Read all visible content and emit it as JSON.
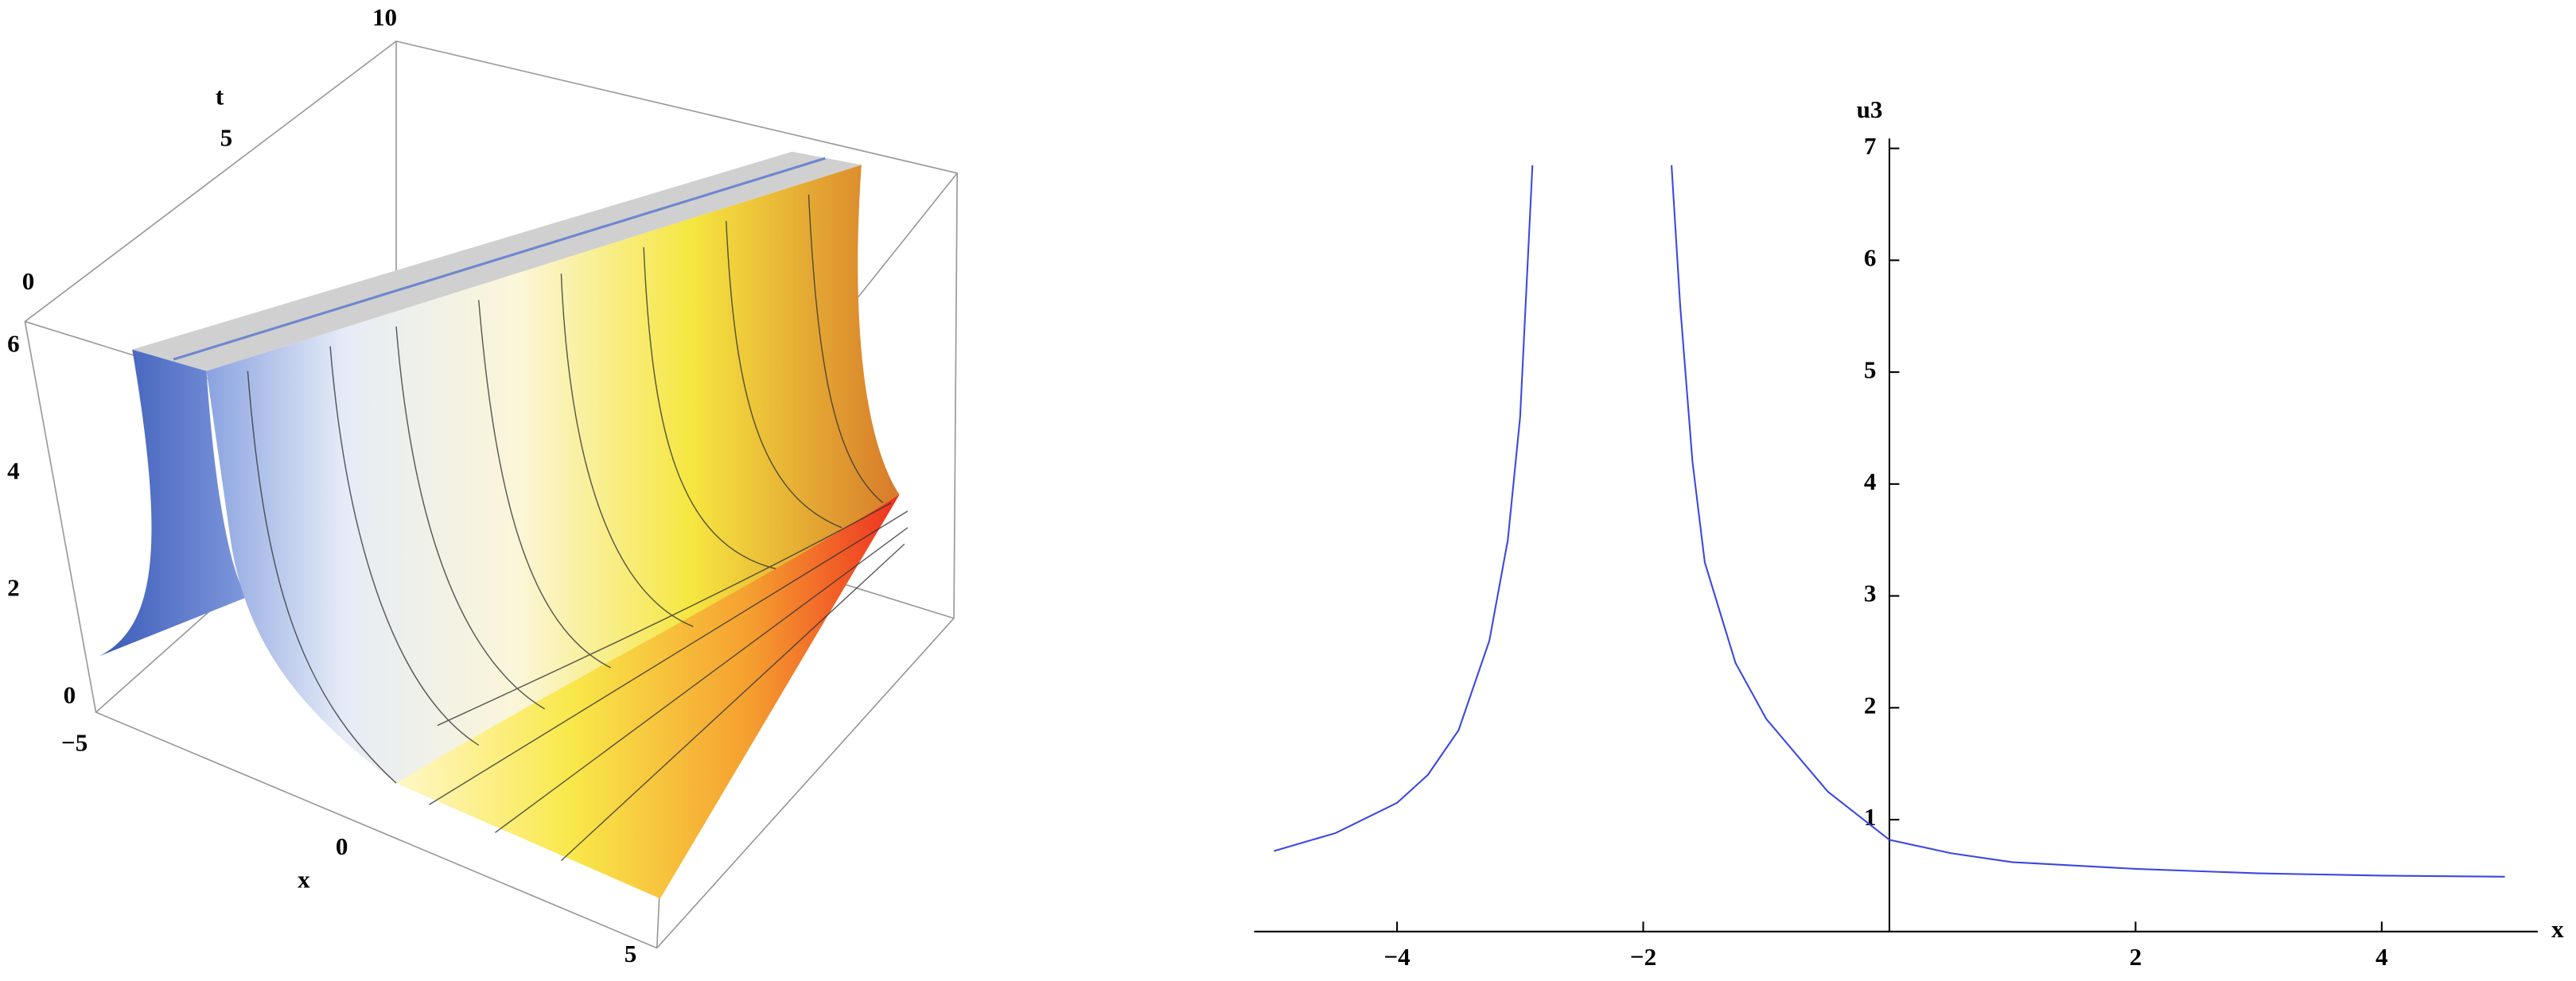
{
  "chart_data": [
    {
      "type": "surface",
      "xlabel": "x",
      "ylabel": "t",
      "xticks": [
        {
          "value": -5,
          "label": "−5"
        },
        0,
        5
      ],
      "yticks": [
        0,
        5,
        10
      ],
      "zticks": [
        0,
        2,
        4,
        6
      ]
    },
    {
      "type": "line",
      "xlabel": "x",
      "ylabel": "u3",
      "color": "#3a48e0",
      "xlim": [
        -5,
        5
      ],
      "ylim": [
        0,
        7
      ],
      "xticks": [
        {
          "value": -4,
          "label": "−4"
        },
        {
          "value": -2,
          "label": "−2"
        },
        2,
        4
      ],
      "yticks": [
        1,
        2,
        3,
        4,
        5,
        6,
        7
      ],
      "x": [
        -5,
        -4.5,
        -4,
        -3.75,
        -3.5,
        -3.25,
        -3.1,
        -3,
        -2.9,
        -2.33,
        -1.77,
        -1.7,
        -1.6,
        -1.5,
        -1.25,
        -1,
        -0.5,
        0,
        0.5,
        1,
        2,
        3,
        4,
        5
      ],
      "values": [
        0.72,
        0.88,
        1.15,
        1.4,
        1.8,
        2.6,
        3.5,
        4.6,
        6.85,
        null,
        6.85,
        5.6,
        4.2,
        3.3,
        2.4,
        1.9,
        1.25,
        0.82,
        0.7,
        0.62,
        0.56,
        0.52,
        0.5,
        0.49
      ]
    }
  ]
}
